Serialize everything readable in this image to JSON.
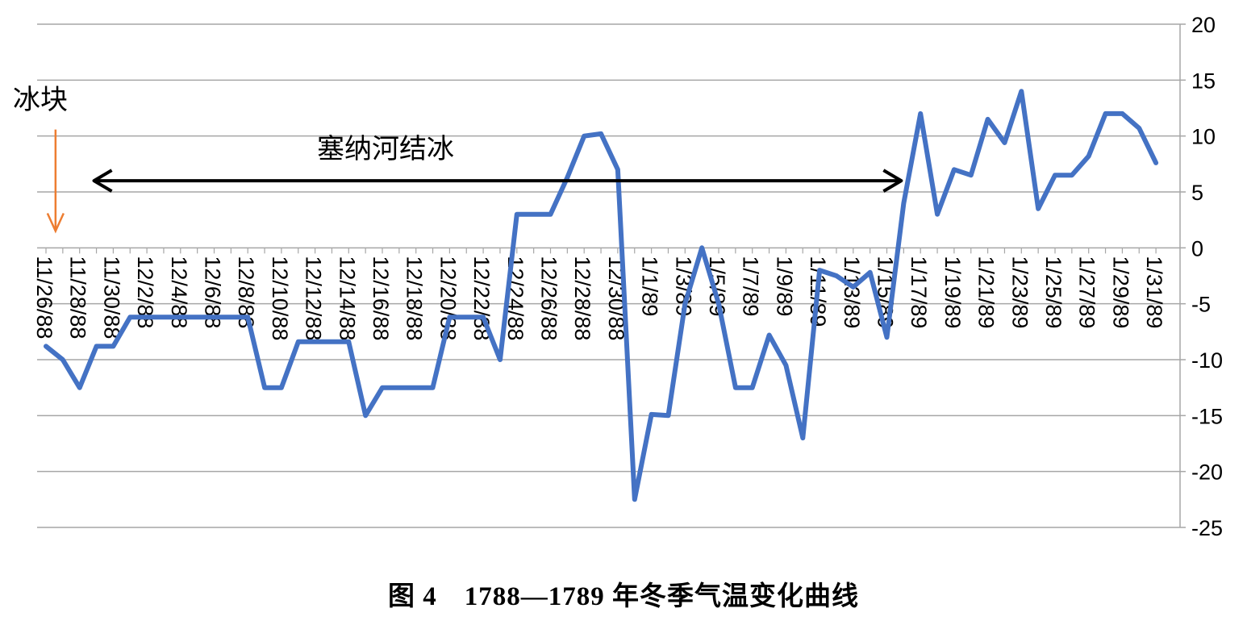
{
  "caption": "图 4　1788—1789 年冬季气温变化曲线",
  "annotations": {
    "ice_label": "冰块",
    "freeze_label": "塞纳河结冰",
    "freeze_start": "11/29/88",
    "freeze_end": "1/16/89",
    "freeze_y": 6,
    "ice_marker_date": "11/27/88",
    "ice_marker_y_top": 10,
    "ice_marker_y_bottom": 1.5
  },
  "chart_data": {
    "type": "line",
    "title": "",
    "xlabel": "",
    "ylabel": "",
    "ylim": [
      -25,
      20
    ],
    "yticks": [
      20,
      15,
      10,
      5,
      0,
      -5,
      -10,
      -15,
      -20,
      -25
    ],
    "y_axis_position": "right",
    "grid": true,
    "x": [
      "11/26/88",
      "11/27/88",
      "11/28/88",
      "11/29/88",
      "11/30/88",
      "12/1/88",
      "12/2/88",
      "12/3/88",
      "12/4/88",
      "12/5/88",
      "12/6/88",
      "12/7/88",
      "12/8/88",
      "12/9/88",
      "12/10/88",
      "12/11/88",
      "12/12/88",
      "12/13/88",
      "12/14/88",
      "12/15/88",
      "12/16/88",
      "12/17/88",
      "12/18/88",
      "12/19/88",
      "12/20/88",
      "12/21/88",
      "12/22/88",
      "12/23/88",
      "12/24/88",
      "12/25/88",
      "12/26/88",
      "12/27/88",
      "12/28/88",
      "12/29/88",
      "12/30/88",
      "12/31/88",
      "1/1/89",
      "1/2/89",
      "1/3/89",
      "1/4/89",
      "1/5/89",
      "1/6/89",
      "1/7/89",
      "1/8/89",
      "1/9/89",
      "1/10/89",
      "1/11/89",
      "1/12/89",
      "1/13/89",
      "1/14/89",
      "1/15/89",
      "1/16/89",
      "1/17/89",
      "1/18/89",
      "1/19/89",
      "1/20/89",
      "1/21/89",
      "1/22/89",
      "1/23/89",
      "1/24/89",
      "1/25/89",
      "1/26/89",
      "1/27/89",
      "1/28/89",
      "1/29/89",
      "1/30/89",
      "1/31/89"
    ],
    "x_tick_labels": [
      "11/26/88",
      "11/28/88",
      "11/30/88",
      "12/2/88",
      "12/4/88",
      "12/6/88",
      "12/8/88",
      "12/10/88",
      "12/12/88",
      "12/14/88",
      "12/16/88",
      "12/18/88",
      "12/20/88",
      "12/22/88",
      "12/24/88",
      "12/26/88",
      "12/28/88",
      "12/30/88",
      "1/1/89",
      "1/3/89",
      "1/5/89",
      "1/7/89",
      "1/9/89",
      "1/11/89",
      "1/13/89",
      "1/15/89",
      "1/17/89",
      "1/19/89",
      "1/21/89",
      "1/23/89",
      "1/25/89",
      "1/27/89",
      "1/29/89",
      "1/31/89"
    ],
    "series": [
      {
        "color": "#4472C4",
        "values": [
          -8.8,
          -10,
          -12.5,
          -8.8,
          -8.8,
          -6.2,
          -6.2,
          -6.2,
          -6.2,
          -6.2,
          -6.2,
          -6.2,
          -6.2,
          -12.5,
          -12.5,
          -8.4,
          -8.4,
          -8.4,
          -8.4,
          -15,
          -12.5,
          -12.5,
          -12.5,
          -12.5,
          -6.2,
          -6.2,
          -6.2,
          -10,
          3,
          3,
          3,
          6.3,
          10,
          10.2,
          7,
          -22.5,
          -14.9,
          -15,
          -5,
          0,
          -5,
          -12.5,
          -12.5,
          -7.8,
          -10.5,
          -17,
          -2,
          -2.5,
          -3.5,
          -2.2,
          -8,
          4,
          12,
          3,
          7,
          6.5,
          11.5,
          9.4,
          14,
          3.5,
          6.5,
          6.5,
          8.2,
          12,
          12,
          10.7,
          7.6
        ]
      }
    ]
  }
}
